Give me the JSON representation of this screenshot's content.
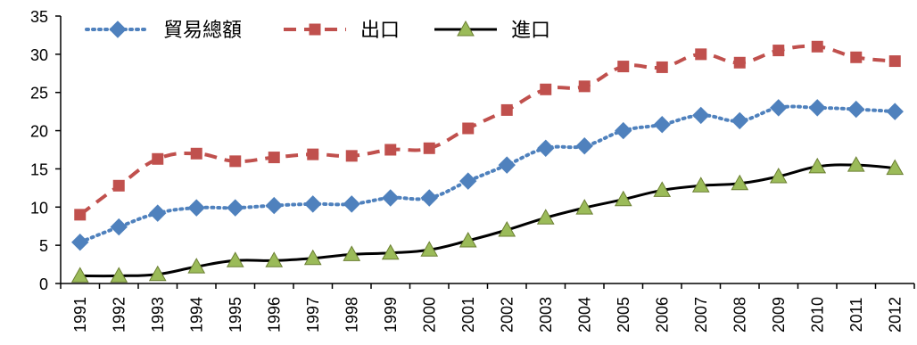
{
  "chart_data": {
    "type": "line",
    "title": "",
    "xlabel": "",
    "ylabel": "",
    "ylim": [
      0,
      35
    ],
    "yticks": [
      "0",
      "5",
      "10",
      "15",
      "20",
      "25",
      "30",
      "35"
    ],
    "categories": [
      "1991",
      "1992",
      "1993",
      "1994",
      "1995",
      "1996",
      "1997",
      "1998",
      "1999",
      "2000",
      "2001",
      "2002",
      "2003",
      "2004",
      "2005",
      "2006",
      "2007",
      "2008",
      "2009",
      "2010",
      "2011",
      "2012"
    ],
    "legend_position": "top-left",
    "grid": false,
    "series": [
      {
        "name": "貿易總額",
        "color": "#4F81BD",
        "line_style": "dotted",
        "marker": "diamond",
        "values": [
          5.4,
          7.4,
          9.2,
          9.9,
          9.9,
          10.2,
          10.4,
          10.4,
          11.2,
          11.2,
          13.4,
          15.5,
          17.7,
          18.0,
          20.0,
          20.8,
          22.0,
          21.3,
          23.0,
          23.0,
          22.8,
          22.5
        ]
      },
      {
        "name": "出口",
        "color": "#C0504D",
        "line_style": "dashed",
        "marker": "square",
        "values": [
          9.0,
          12.8,
          16.3,
          17.0,
          16.0,
          16.5,
          16.9,
          16.7,
          17.5,
          17.7,
          20.3,
          22.7,
          25.4,
          25.8,
          28.4,
          28.3,
          30.0,
          28.9,
          30.5,
          31.0,
          29.6,
          29.1
        ]
      },
      {
        "name": "進口",
        "color": "#000000",
        "line_style": "solid",
        "marker": "triangle",
        "marker_fill": "#9BBB59",
        "values": [
          1.0,
          1.0,
          1.2,
          2.2,
          3.0,
          3.0,
          3.3,
          3.8,
          4.0,
          4.4,
          5.6,
          7.0,
          8.6,
          9.9,
          11.0,
          12.2,
          12.8,
          13.1,
          14.0,
          15.3,
          15.5,
          15.1
        ]
      }
    ]
  }
}
